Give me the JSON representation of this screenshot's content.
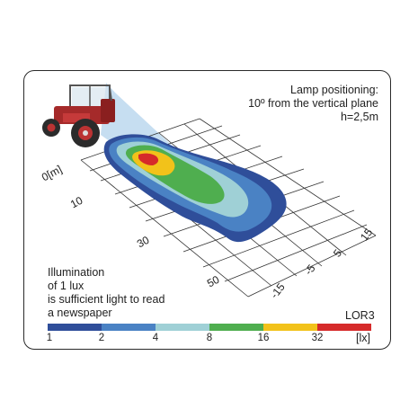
{
  "header": {
    "line1": "Lamp positioning:",
    "line2": "10º from the vertical plane",
    "line3": "h=2,5m"
  },
  "note": {
    "line1": "Illumination",
    "line2": "of 1 lux",
    "line3": "is sufficient light to read",
    "line4": "a newspaper"
  },
  "model": "LOR3",
  "x_axis_ticks": [
    "0[m]",
    "10",
    "30",
    "50"
  ],
  "y_axis_ticks": [
    "15",
    "5",
    "-5",
    "-15"
  ],
  "scale": {
    "labels": [
      "1",
      "2",
      "4",
      "8",
      "16",
      "32"
    ],
    "unit": "[lx]",
    "colors": [
      "#2f4e9a",
      "#4a82c4",
      "#9fd0d6",
      "#4fae4f",
      "#f2c21a",
      "#d62a2a"
    ]
  }
}
